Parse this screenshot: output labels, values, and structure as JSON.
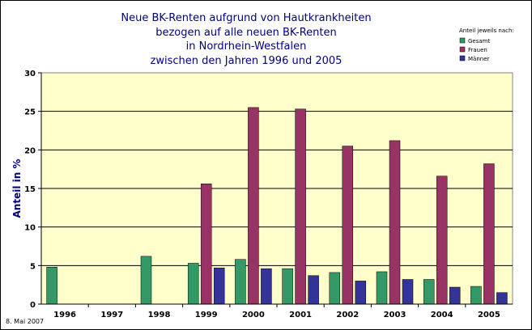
{
  "chart_data": {
    "type": "bar",
    "title_lines": [
      "Neue BK-Renten aufgrund von Hautkrankheiten",
      "bezogen auf alle neuen BK-Renten",
      "in Nordrhein-Westfalen",
      "zwischen den Jahren 1996 und 2005"
    ],
    "ylabel": "Anteil in %",
    "xlabel": "",
    "ylim": [
      0,
      30
    ],
    "yticks": [
      "0",
      "5",
      "10",
      "15",
      "20",
      "25",
      "30"
    ],
    "categories": [
      "1996",
      "1997",
      "1998",
      "1999",
      "2000",
      "2001",
      "2002",
      "2003",
      "2004",
      "2005"
    ],
    "series": [
      {
        "name": "Gesamt",
        "color": "#339966",
        "values": [
          4.8,
          null,
          6.2,
          5.3,
          5.8,
          4.6,
          4.1,
          4.2,
          3.2,
          2.3
        ]
      },
      {
        "name": "Frauen",
        "color": "#993366",
        "values": [
          null,
          null,
          null,
          15.6,
          25.5,
          25.3,
          20.5,
          21.2,
          16.6,
          18.2
        ]
      },
      {
        "name": "Männer",
        "color": "#333399",
        "values": [
          null,
          null,
          null,
          4.7,
          4.6,
          3.7,
          3.0,
          3.2,
          2.2,
          1.5
        ]
      }
    ],
    "legend_title": "Anteil jeweils nach:",
    "legend_position": "top-right",
    "grid": true,
    "plot_background": "#ffffcc"
  },
  "footnote": "8. Mai 2007"
}
